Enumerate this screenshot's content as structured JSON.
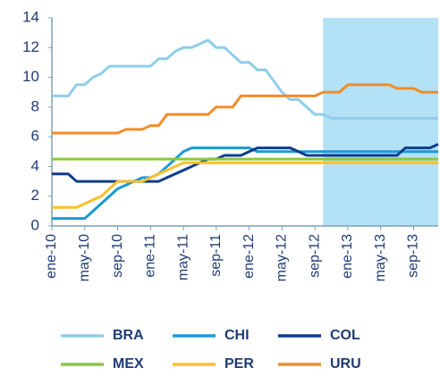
{
  "chart_data": {
    "type": "line",
    "categories": [
      "ene-10",
      null,
      null,
      null,
      "may-10",
      null,
      null,
      null,
      "sep-10",
      null,
      null,
      null,
      "ene-11",
      null,
      null,
      null,
      "may-11",
      null,
      null,
      null,
      "sep-11",
      null,
      null,
      null,
      "ene-12",
      null,
      null,
      null,
      "may-12",
      null,
      null,
      null,
      "sep-12",
      null,
      null,
      null,
      "ene-13",
      null,
      null,
      null,
      "may-13",
      null,
      null,
      null,
      "sep-13",
      null,
      null,
      null
    ],
    "series": [
      {
        "name": "BRA",
        "color": "#8fcdea",
        "values": [
          8.75,
          8.75,
          8.75,
          9.5,
          9.5,
          10,
          10.25,
          10.75,
          10.75,
          10.75,
          10.75,
          10.75,
          10.75,
          11.25,
          11.25,
          11.75,
          12,
          12,
          12.25,
          12.5,
          12,
          12,
          11.5,
          11,
          11,
          10.5,
          10.5,
          9.75,
          9,
          8.5,
          8.5,
          8,
          7.5,
          7.5,
          7.25,
          7.25,
          7.25,
          7.25,
          7.25,
          7.25,
          7.25,
          7.25,
          7.25,
          7.25,
          7.25,
          7.25,
          7.25,
          7.25
        ]
      },
      {
        "name": "CHI",
        "color": "#1a9ad6",
        "values": [
          0.5,
          0.5,
          0.5,
          0.5,
          0.5,
          1,
          1.5,
          2,
          2.5,
          2.75,
          3,
          3.25,
          3.25,
          3.5,
          4,
          4.5,
          5,
          5.25,
          5.25,
          5.25,
          5.25,
          5.25,
          5.25,
          5.25,
          5.25,
          5,
          5,
          5,
          5,
          5,
          5,
          5,
          5,
          5,
          5,
          5,
          5,
          5,
          5,
          5,
          5,
          5,
          5,
          5,
          5,
          5,
          5,
          5
        ]
      },
      {
        "name": "COL",
        "color": "#0d3d8c",
        "values": [
          3.5,
          3.5,
          3.5,
          3,
          3,
          3,
          3,
          3,
          3,
          3,
          3,
          3,
          3,
          3,
          3.25,
          3.5,
          3.75,
          4,
          4.25,
          4.5,
          4.5,
          4.75,
          4.75,
          4.75,
          5,
          5.25,
          5.25,
          5.25,
          5.25,
          5.25,
          5,
          4.75,
          4.75,
          4.75,
          4.75,
          4.75,
          4.75,
          4.75,
          4.75,
          4.75,
          4.75,
          4.75,
          4.75,
          5.25,
          5.25,
          5.25,
          5.25,
          5.5
        ]
      },
      {
        "name": "MEX",
        "color": "#8dc63f",
        "values": [
          4.5,
          4.5,
          4.5,
          4.5,
          4.5,
          4.5,
          4.5,
          4.5,
          4.5,
          4.5,
          4.5,
          4.5,
          4.5,
          4.5,
          4.5,
          4.5,
          4.5,
          4.5,
          4.5,
          4.5,
          4.5,
          4.5,
          4.5,
          4.5,
          4.5,
          4.5,
          4.5,
          4.5,
          4.5,
          4.5,
          4.5,
          4.5,
          4.5,
          4.5,
          4.5,
          4.5,
          4.5,
          4.5,
          4.5,
          4.5,
          4.5,
          4.5,
          4.5,
          4.5,
          4.5,
          4.5,
          4.5,
          4.5
        ]
      },
      {
        "name": "PER",
        "color": "#fbbf2c",
        "values": [
          1.25,
          1.25,
          1.25,
          1.25,
          1.5,
          1.75,
          2,
          2.5,
          3,
          3,
          3,
          3,
          3.25,
          3.5,
          3.75,
          4,
          4.25,
          4.25,
          4.25,
          4.25,
          4.25,
          4.25,
          4.25,
          4.25,
          4.25,
          4.25,
          4.25,
          4.25,
          4.25,
          4.25,
          4.25,
          4.25,
          4.25,
          4.25,
          4.25,
          4.25,
          4.25,
          4.25,
          4.25,
          4.25,
          4.25,
          4.25,
          4.25,
          4.25,
          4.25,
          4.25,
          4.25,
          4.25
        ]
      },
      {
        "name": "URU",
        "color": "#f28c28",
        "values": [
          6.25,
          6.25,
          6.25,
          6.25,
          6.25,
          6.25,
          6.25,
          6.25,
          6.25,
          6.5,
          6.5,
          6.5,
          6.75,
          6.75,
          7.5,
          7.5,
          7.5,
          7.5,
          7.5,
          7.5,
          8,
          8,
          8,
          8.75,
          8.75,
          8.75,
          8.75,
          8.75,
          8.75,
          8.75,
          8.75,
          8.75,
          8.75,
          9,
          9,
          9,
          9.5,
          9.5,
          9.5,
          9.5,
          9.5,
          9.5,
          9.25,
          9.25,
          9.25,
          9,
          9,
          9
        ]
      }
    ],
    "ylim": [
      0,
      14
    ],
    "yticks": [
      0,
      2,
      4,
      6,
      8,
      10,
      12,
      14
    ],
    "shade_from": "oct-12",
    "shade_color": "#b3e1f5",
    "grid": false
  }
}
